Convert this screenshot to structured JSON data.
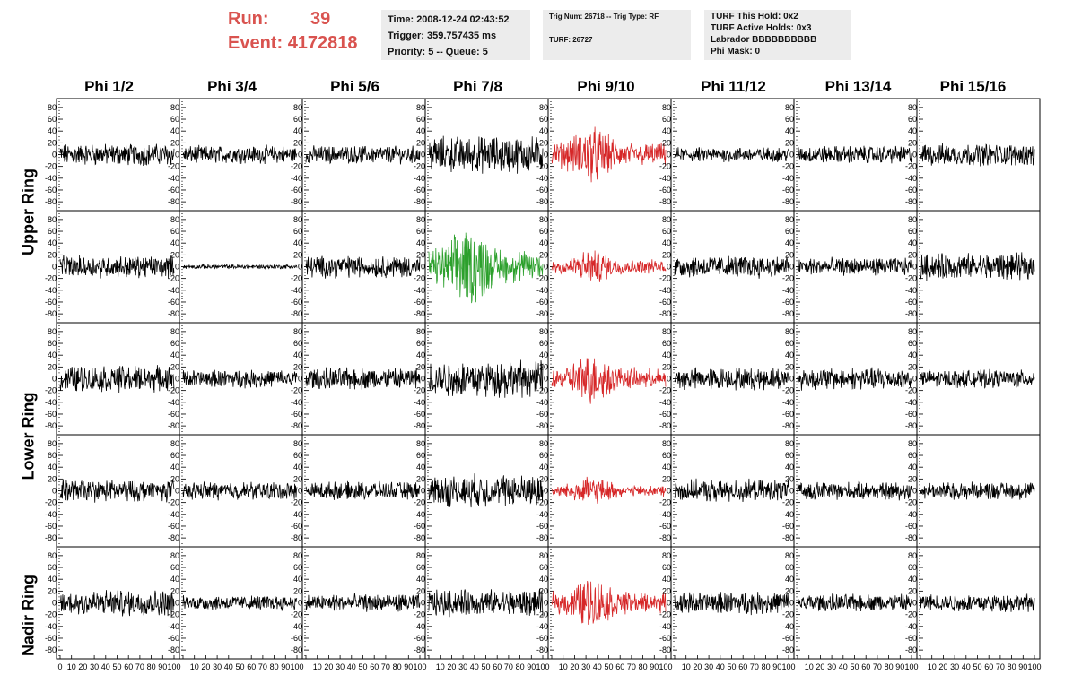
{
  "header": {
    "run_label": "Run:",
    "run_value": "39",
    "event_label": "Event:",
    "event_value": "4172818",
    "time_line": "Time: 2008-12-24 02:43:52",
    "trigger_line": "Trigger: 359.757435 ms",
    "priority_line": "Priority: 5 -- Queue: 5",
    "trig_line": "Trig Num: 26718 -- Trig Type: RF",
    "turf_line": "TURF: 26727",
    "turf_hold_line": "TURF This Hold: 0x2",
    "turf_active_line": "TURF Active Holds: 0x3",
    "labrador_line": "Labrador BBBBBBBBBB",
    "phimask_line": "Phi Mask: 0"
  },
  "columns": [
    "Phi 1/2",
    "Phi 3/4",
    "Phi 5/6",
    "Phi 7/8",
    "Phi 9/10",
    "Phi 11/12",
    "Phi 13/14",
    "Phi 15/16"
  ],
  "rings": [
    "Upper Ring",
    "Lower Ring",
    "Nadir Ring"
  ],
  "colors": {
    "normal": "#000000",
    "triggered": "#d62728",
    "highlight": "#2ca02c",
    "title_red": "#d9534f",
    "box_bg": "#ececec"
  },
  "chart_data": {
    "type": "line",
    "description_rows": 5,
    "y_ticks": [
      80,
      60,
      40,
      20,
      0,
      -20,
      -40,
      -60,
      -80
    ],
    "x_tick_labels": [
      "0",
      "10",
      "20",
      "30",
      "40",
      "50",
      "60",
      "70",
      "80",
      "90",
      "100"
    ],
    "ylim": [
      -95,
      95
    ],
    "xlim": [
      0,
      100
    ],
    "row_colors": [
      [
        "normal",
        "normal",
        "normal",
        "normal",
        "triggered",
        "normal",
        "normal",
        "normal"
      ],
      [
        "normal",
        "normal",
        "normal",
        "highlight",
        "triggered",
        "normal",
        "normal",
        "normal"
      ],
      [
        "normal",
        "normal",
        "normal",
        "normal",
        "triggered",
        "normal",
        "normal",
        "normal"
      ],
      [
        "normal",
        "normal",
        "normal",
        "normal",
        "triggered",
        "normal",
        "normal",
        "normal"
      ],
      [
        "normal",
        "normal",
        "normal",
        "normal",
        "triggered",
        "normal",
        "normal",
        "normal"
      ]
    ],
    "row_amplitudes": [
      [
        15,
        12,
        12,
        25,
        25,
        10,
        12,
        15
      ],
      [
        15,
        3,
        15,
        35,
        15,
        15,
        12,
        18
      ],
      [
        18,
        12,
        15,
        25,
        22,
        15,
        15,
        12
      ],
      [
        15,
        12,
        12,
        22,
        12,
        15,
        12,
        12
      ],
      [
        18,
        10,
        12,
        18,
        22,
        15,
        12,
        12
      ]
    ]
  }
}
